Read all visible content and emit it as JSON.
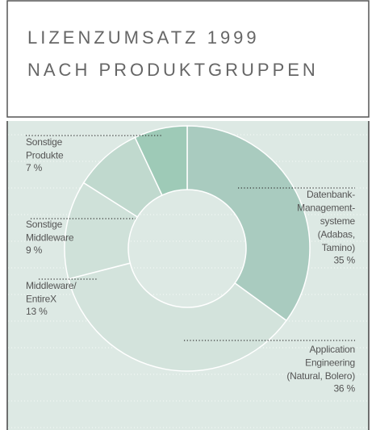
{
  "chart_data": {
    "type": "donut",
    "title": [
      "LIZENZUMSATZ 1999",
      "NACH PRODUKTGRUPPEN"
    ],
    "categories": [
      [
        "Datenbank-",
        "Management-",
        "systeme",
        "(Adabas,",
        "Tamino)"
      ],
      [
        "Application",
        "Engineering",
        "(Natural, Bolero)"
      ],
      [
        "Middleware/",
        "EntireX"
      ],
      [
        "Sonstige",
        "Middleware"
      ],
      [
        "Sonstige",
        "Produkte"
      ]
    ],
    "values": [
      35,
      36,
      13,
      9,
      7
    ],
    "value_labels": [
      "35 %",
      "36 %",
      "13 %",
      "9 %",
      "7 %"
    ],
    "colors": [
      "#a9cbbf",
      "#d3e3dc",
      "#cfe1d9",
      "#c0d9ce",
      "#9ecab7"
    ]
  }
}
